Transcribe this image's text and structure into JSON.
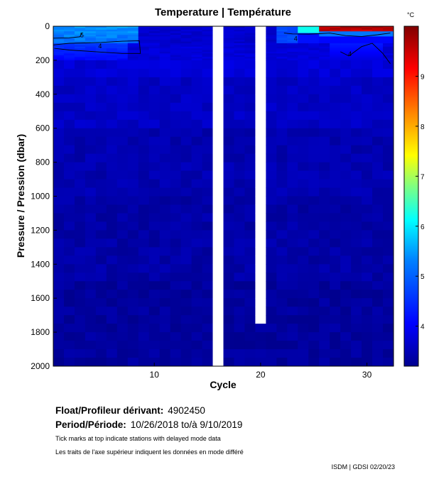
{
  "chart_data": {
    "type": "heatmap",
    "title": "Temperature | Température",
    "xlabel": "Cycle",
    "ylabel": "Pressure / Pression (dbar)",
    "colorbar_unit": "°C",
    "xlim": [
      0.5,
      32.5
    ],
    "ylim": [
      2000,
      0
    ],
    "x_ticks": [
      "10",
      "20",
      "30"
    ],
    "x_tick_values": [
      10,
      20,
      30
    ],
    "y_ticks": [
      "0",
      "200",
      "400",
      "600",
      "800",
      "1000",
      "1200",
      "1400",
      "1600",
      "1800",
      "2000"
    ],
    "y_tick_values": [
      0,
      200,
      400,
      600,
      800,
      1000,
      1200,
      1400,
      1600,
      1800,
      2000
    ],
    "colorbar_ticks": [
      "4",
      "5",
      "6",
      "7",
      "8",
      "9"
    ],
    "colorbar_tick_values": [
      4,
      5,
      6,
      7,
      8,
      9
    ],
    "colorbar_range": [
      3.2,
      10
    ],
    "colormap": [
      "#00008f",
      "#0000ff",
      "#0080ff",
      "#00ffff",
      "#80ff80",
      "#ffff00",
      "#ff8000",
      "#ff0000",
      "#800000"
    ],
    "missing_cycles": [
      16,
      20
    ],
    "missing_below_dbar": {
      "20": 1750
    },
    "contour_labels": [
      {
        "text": "5",
        "cycle": 3.2,
        "pressure": 65
      },
      {
        "text": "4",
        "cycle": 4.9,
        "pressure": 130
      },
      {
        "text": "4",
        "cycle": 23.3,
        "pressure": 85
      },
      {
        "text": "4",
        "cycle": 28.4,
        "pressure": 175
      }
    ],
    "grid": false,
    "legend": "colorbar-right"
  },
  "float": {
    "label": "Float/Profileur dérivant:",
    "value": "4902450"
  },
  "period": {
    "label": "Period/Période:",
    "value": "10/26/2018  to/à  9/10/2019"
  },
  "note_en": "Tick marks at top indicate stations with delayed mode data",
  "note_fr": "Les traits de l'axe supérieur indiquent les données en mode différé",
  "credit": "ISDM | GDSI  02/20/23"
}
